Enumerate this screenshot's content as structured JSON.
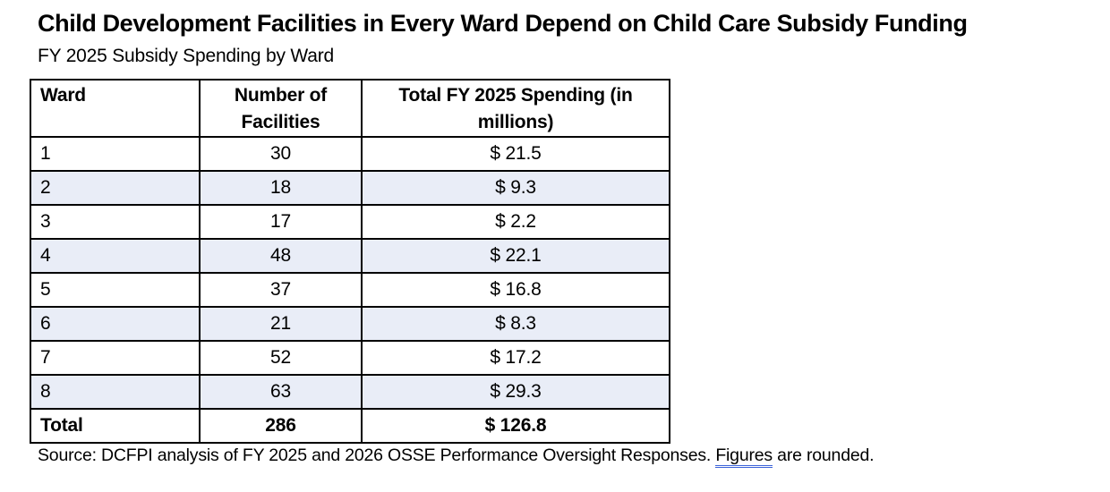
{
  "title": "Child Development Facilities in Every Ward Depend on Child Care Subsidy Funding",
  "subtitle": "FY 2025 Subsidy Spending by Ward",
  "source": {
    "prefix": "Source: DCFPI analysis of FY 2025 and 2026 OSSE Performance Oversight Responses. ",
    "flagged_word": "Figures",
    "suffix": " are rounded."
  },
  "colors": {
    "shaded_row": "#e9edf7",
    "table_border": "#000000",
    "grammar_underline": "#3c63d9",
    "text": "#000000",
    "background": "#ffffff"
  },
  "chart_data": {
    "type": "table",
    "title": "Child Development Facilities in Every Ward Depend on Child Care Subsidy Funding",
    "subtitle": "FY 2025 Subsidy Spending by Ward",
    "columns": [
      "Ward",
      "Number of Facilities",
      "Total FY 2025 Spending (in millions)"
    ],
    "rows": [
      [
        "1",
        "30",
        "$ 21.5"
      ],
      [
        "2",
        "18",
        "$ 9.3"
      ],
      [
        "3",
        "17",
        "$ 2.2"
      ],
      [
        "4",
        "48",
        "$ 22.1"
      ],
      [
        "5",
        "37",
        "$ 16.8"
      ],
      [
        "6",
        "21",
        "$ 8.3"
      ],
      [
        "7",
        "52",
        "$ 17.2"
      ],
      [
        "8",
        "63",
        "$ 29.3"
      ],
      [
        "Total",
        "286",
        "$ 126.8"
      ]
    ]
  }
}
